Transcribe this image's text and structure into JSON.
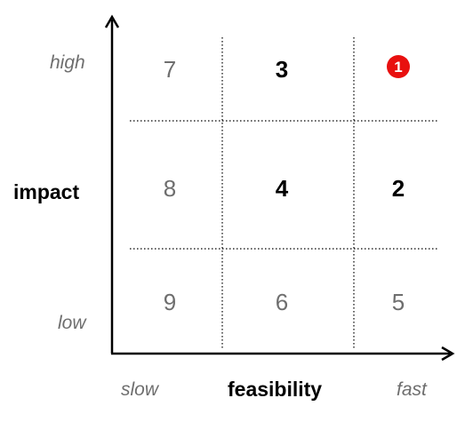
{
  "y_axis": {
    "title": "impact",
    "high_label": "high",
    "low_label": "low"
  },
  "x_axis": {
    "title": "feasibility",
    "slow_label": "slow",
    "fast_label": "fast"
  },
  "grid": {
    "rows": [
      [
        {
          "value": "7",
          "style": "normal"
        },
        {
          "value": "3",
          "style": "bold"
        },
        {
          "value": "1",
          "style": "badge"
        }
      ],
      [
        {
          "value": "8",
          "style": "normal"
        },
        {
          "value": "4",
          "style": "bold"
        },
        {
          "value": "2",
          "style": "bold"
        }
      ],
      [
        {
          "value": "9",
          "style": "normal"
        },
        {
          "value": "6",
          "style": "normal"
        },
        {
          "value": "5",
          "style": "normal"
        }
      ]
    ]
  },
  "colors": {
    "axis": "#000000",
    "muted_text": "#6e6e6e",
    "badge": "#e8100f"
  }
}
